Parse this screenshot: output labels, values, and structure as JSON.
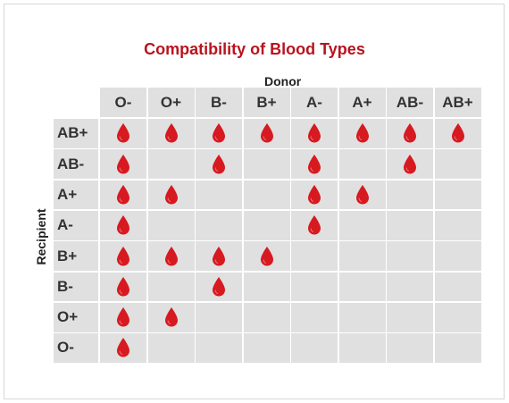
{
  "title": "Compatibility of Blood Types",
  "donor_label": "Donor",
  "recipient_label": "Recipient",
  "donors": [
    "O-",
    "O+",
    "B-",
    "B+",
    "A-",
    "A+",
    "AB-",
    "AB+"
  ],
  "recipients": [
    "AB+",
    "AB-",
    "A+",
    "A-",
    "B+",
    "B-",
    "O+",
    "O-"
  ],
  "compatibility": [
    [
      1,
      1,
      1,
      1,
      1,
      1,
      1,
      1
    ],
    [
      1,
      0,
      1,
      0,
      1,
      0,
      1,
      0
    ],
    [
      1,
      1,
      0,
      0,
      1,
      1,
      0,
      0
    ],
    [
      1,
      0,
      0,
      0,
      1,
      0,
      0,
      0
    ],
    [
      1,
      1,
      1,
      1,
      0,
      0,
      0,
      0
    ],
    [
      1,
      0,
      1,
      0,
      0,
      0,
      0,
      0
    ],
    [
      1,
      1,
      0,
      0,
      0,
      0,
      0,
      0
    ],
    [
      1,
      0,
      0,
      0,
      0,
      0,
      0,
      0
    ]
  ],
  "icons": {
    "compatible": "blood-drop-icon"
  },
  "colors": {
    "drop": "#d71920",
    "title": "#b8141f",
    "cell": "#e0e0e0"
  }
}
